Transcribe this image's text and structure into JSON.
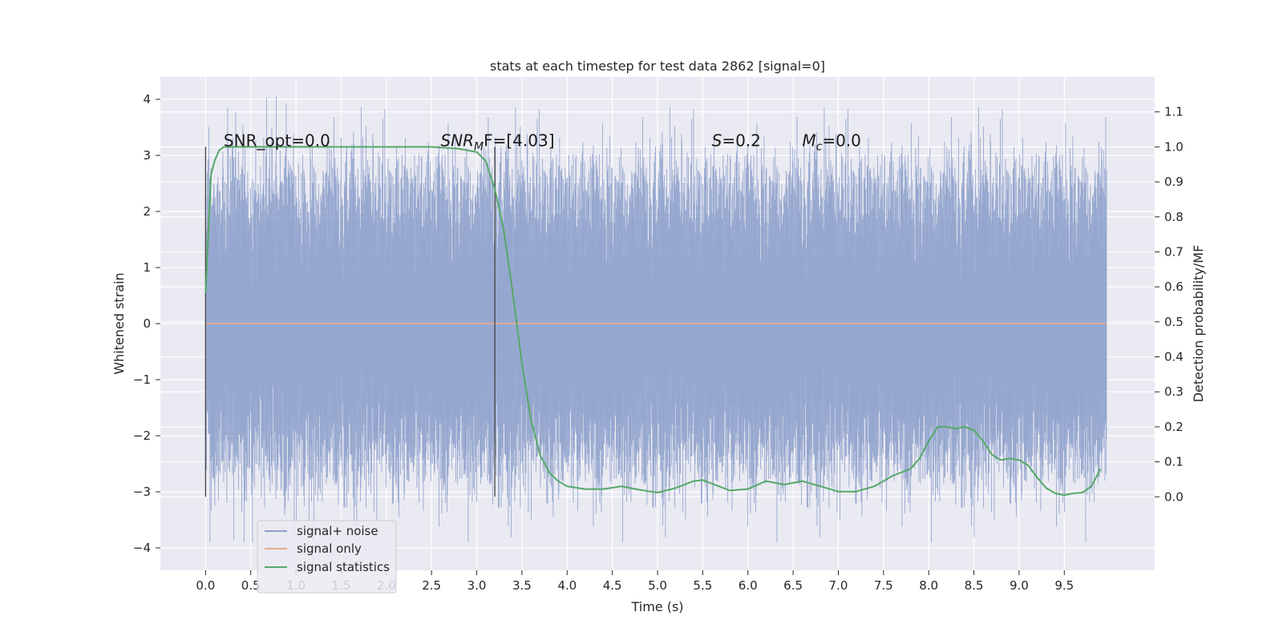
{
  "chart_data": {
    "type": "line",
    "title": "stats at each timestep for test data 2862 [signal=0]",
    "xlabel": "Time (s)",
    "ylabel": "Whitened strain",
    "y2label": "Detection probability/MF",
    "xlim": [
      -0.5,
      10.5
    ],
    "ylim": [
      -4.4,
      4.4
    ],
    "y2lim": [
      -0.21,
      1.2
    ],
    "x_ticks": [
      "0.0",
      "0.5",
      "1.0",
      "1.5",
      "2.0",
      "2.5",
      "3.0",
      "3.5",
      "4.0",
      "4.5",
      "5.0",
      "5.5",
      "6.0",
      "6.5",
      "7.0",
      "7.5",
      "8.0",
      "8.5",
      "9.0",
      "9.5"
    ],
    "y_ticks": [
      "4",
      "3",
      "2",
      "1",
      "0",
      "−1",
      "−2",
      "−3",
      "−4"
    ],
    "y2_ticks": [
      "1.1",
      "1.0",
      "0.9",
      "0.8",
      "0.7",
      "0.6",
      "0.5",
      "0.4",
      "0.3",
      "0.2",
      "0.1",
      "0.0"
    ],
    "grid": true,
    "legend_placement": "lower-left",
    "annotations": {
      "snr_opt": "SNR_opt=0.0",
      "snr_mf_sym": "SNR",
      "snr_mf_sub": "M",
      "snr_mf_rest": "F=[4.03]",
      "s_sym": "S",
      "s_rest": "=0.2",
      "mc_sym": "M",
      "mc_sub": "c",
      "mc_rest": "=0.0"
    },
    "vertical_lines_x": [
      0.0,
      3.2
    ],
    "series": [
      {
        "name": "signal+ noise",
        "axis": "left",
        "color": "#8da0cb",
        "x_range": [
          0.0,
          9.97
        ],
        "envelope_approx": {
          "core": [
            -1.9,
            1.9
          ],
          "peaks": [
            -3.9,
            4.05
          ]
        }
      },
      {
        "name": "signal only",
        "axis": "left",
        "color": "#e8a990",
        "x": [
          0.0,
          9.97
        ],
        "y": [
          0.0,
          0.0
        ]
      },
      {
        "name": "signal statistics",
        "axis": "right",
        "color": "#55a868",
        "x": [
          0.0,
          0.03,
          0.06,
          0.1,
          0.15,
          0.2,
          0.4,
          1.0,
          2.0,
          2.5,
          2.8,
          3.0,
          3.1,
          3.2,
          3.3,
          3.4,
          3.5,
          3.6,
          3.7,
          3.8,
          3.9,
          4.0,
          4.2,
          4.4,
          4.6,
          4.8,
          5.0,
          5.2,
          5.4,
          5.5,
          5.6,
          5.8,
          6.0,
          6.2,
          6.4,
          6.6,
          6.8,
          7.0,
          7.2,
          7.4,
          7.6,
          7.8,
          7.9,
          8.0,
          8.1,
          8.2,
          8.3,
          8.4,
          8.5,
          8.6,
          8.7,
          8.8,
          8.9,
          9.0,
          9.1,
          9.2,
          9.3,
          9.4,
          9.5,
          9.6,
          9.7,
          9.8,
          9.9
        ],
        "y": [
          0.58,
          0.75,
          0.92,
          0.96,
          0.99,
          1.0,
          1.0,
          1.0,
          1.0,
          1.0,
          0.995,
          0.985,
          0.96,
          0.88,
          0.76,
          0.58,
          0.38,
          0.22,
          0.12,
          0.07,
          0.045,
          0.03,
          0.022,
          0.022,
          0.03,
          0.02,
          0.012,
          0.025,
          0.045,
          0.048,
          0.038,
          0.018,
          0.022,
          0.045,
          0.035,
          0.045,
          0.03,
          0.015,
          0.015,
          0.03,
          0.06,
          0.08,
          0.11,
          0.16,
          0.2,
          0.2,
          0.195,
          0.2,
          0.19,
          0.16,
          0.12,
          0.105,
          0.11,
          0.105,
          0.09,
          0.055,
          0.025,
          0.01,
          0.005,
          0.01,
          0.012,
          0.03,
          0.08
        ]
      }
    ]
  }
}
